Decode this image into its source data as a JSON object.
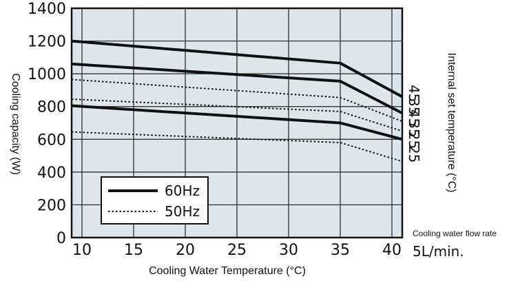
{
  "chart_data": {
    "type": "line",
    "title": "",
    "xlabel": "Cooling Water Temperature (°C)",
    "ylabel": "Cooling capacity (W)",
    "right_label": "Internal set temperature (°C)",
    "xlim": [
      9,
      41
    ],
    "ylim": [
      0,
      1400
    ],
    "x_ticks": [
      "10",
      "15",
      "20",
      "25",
      "30",
      "35",
      "40"
    ],
    "y_ticks": [
      "0",
      "200",
      "400",
      "600",
      "800",
      "1000",
      "1200",
      "1400"
    ],
    "grid": true,
    "x": [
      9,
      35,
      41
    ],
    "series": [
      {
        "name": "45",
        "style": "60Hz",
        "values": [
          1200,
          1065,
          860
        ]
      },
      {
        "name": "35",
        "style": "60Hz",
        "values": [
          1060,
          955,
          760
        ]
      },
      {
        "name": "45",
        "style": "50Hz",
        "values": [
          965,
          855,
          710
        ]
      },
      {
        "name": "35",
        "style": "50Hz",
        "values": [
          845,
          770,
          650
        ]
      },
      {
        "name": "25",
        "style": "60Hz",
        "values": [
          805,
          700,
          600
        ]
      },
      {
        "name": "25",
        "style": "50Hz",
        "values": [
          645,
          580,
          465
        ]
      }
    ],
    "right_labels": [
      {
        "text": "45",
        "y": 880
      },
      {
        "text": "35",
        "y": 800
      },
      {
        "text": "45",
        "y": 730
      },
      {
        "text": "35",
        "y": 665
      },
      {
        "text": "25",
        "y": 595
      },
      {
        "text": "25",
        "y": 510
      }
    ],
    "legend": {
      "placement": "bottom-left",
      "entries": [
        {
          "label": "60Hz",
          "style": "solid"
        },
        {
          "label": "50Hz",
          "style": "dotted"
        }
      ]
    },
    "flow_rate_label": "Cooling water flow rate",
    "flow_rate_value": "5L/min.",
    "colors": {
      "plot_bg": "#dde6ea",
      "line": "#111111",
      "grid": "#222222"
    }
  }
}
